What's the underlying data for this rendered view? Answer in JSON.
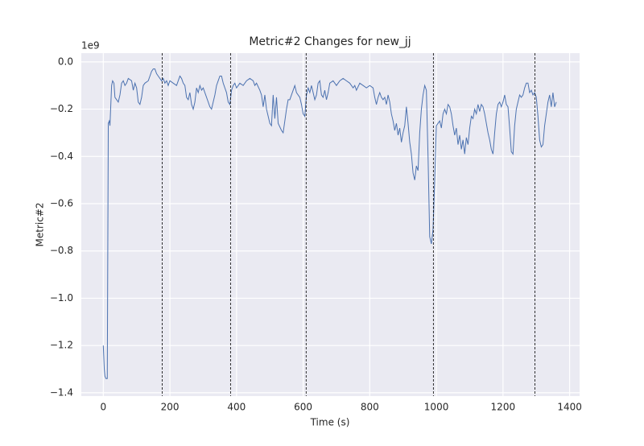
{
  "chart_data": {
    "type": "line",
    "title": "Metric#2 Changes for new_jj",
    "x_label": "Time (s)",
    "y_label": "Metric#2",
    "y_offset_label": "1e9",
    "x": [
      0,
      3,
      5,
      8,
      12,
      15,
      18,
      20,
      25,
      28,
      32,
      35,
      40,
      45,
      50,
      55,
      60,
      65,
      70,
      75,
      85,
      90,
      95,
      100,
      105,
      110,
      115,
      120,
      125,
      135,
      140,
      145,
      150,
      155,
      160,
      165,
      170,
      175,
      180,
      185,
      190,
      195,
      200,
      210,
      220,
      225,
      230,
      235,
      240,
      245,
      250,
      255,
      260,
      265,
      270,
      275,
      280,
      285,
      290,
      295,
      300,
      305,
      315,
      320,
      325,
      330,
      335,
      340,
      345,
      350,
      355,
      360,
      370,
      375,
      380,
      385,
      390,
      395,
      400,
      410,
      420,
      430,
      440,
      450,
      455,
      460,
      470,
      475,
      480,
      485,
      490,
      495,
      500,
      505,
      510,
      515,
      520,
      525,
      535,
      540,
      545,
      550,
      555,
      560,
      565,
      570,
      575,
      580,
      590,
      595,
      600,
      605,
      610,
      615,
      620,
      625,
      630,
      635,
      640,
      645,
      650,
      655,
      660,
      665,
      670,
      675,
      680,
      690,
      700,
      710,
      720,
      730,
      740,
      750,
      755,
      760,
      770,
      780,
      790,
      800,
      810,
      815,
      820,
      825,
      830,
      835,
      840,
      845,
      850,
      855,
      860,
      865,
      870,
      875,
      880,
      885,
      890,
      895,
      900,
      905,
      910,
      915,
      920,
      925,
      930,
      935,
      940,
      945,
      950,
      955,
      960,
      965,
      970,
      975,
      980,
      985,
      990,
      995,
      1000,
      1005,
      1010,
      1015,
      1020,
      1025,
      1030,
      1035,
      1040,
      1045,
      1050,
      1055,
      1060,
      1065,
      1070,
      1075,
      1080,
      1085,
      1090,
      1095,
      1100,
      1105,
      1110,
      1115,
      1120,
      1125,
      1130,
      1135,
      1140,
      1145,
      1150,
      1155,
      1160,
      1165,
      1170,
      1175,
      1180,
      1185,
      1190,
      1195,
      1200,
      1205,
      1210,
      1215,
      1220,
      1225,
      1230,
      1235,
      1240,
      1245,
      1250,
      1255,
      1260,
      1265,
      1270,
      1275,
      1280,
      1285,
      1290,
      1295,
      1300,
      1305,
      1310,
      1315,
      1320,
      1325,
      1330,
      1335,
      1340,
      1345,
      1350,
      1355,
      1360
    ],
    "series": [
      {
        "color": "#4c72b0",
        "values": [
          -1.2,
          -1.3,
          -1.33,
          -1.34,
          -1.34,
          -0.26,
          -0.25,
          -0.27,
          -0.1,
          -0.08,
          -0.09,
          -0.15,
          -0.16,
          -0.17,
          -0.14,
          -0.09,
          -0.08,
          -0.1,
          -0.09,
          -0.07,
          -0.08,
          -0.12,
          -0.09,
          -0.11,
          -0.17,
          -0.18,
          -0.15,
          -0.1,
          -0.09,
          -0.08,
          -0.06,
          -0.04,
          -0.03,
          -0.03,
          -0.05,
          -0.06,
          -0.07,
          -0.08,
          -0.07,
          -0.09,
          -0.08,
          -0.1,
          -0.08,
          -0.09,
          -0.1,
          -0.08,
          -0.06,
          -0.07,
          -0.09,
          -0.1,
          -0.15,
          -0.16,
          -0.13,
          -0.18,
          -0.2,
          -0.17,
          -0.11,
          -0.13,
          -0.1,
          -0.12,
          -0.11,
          -0.13,
          -0.17,
          -0.19,
          -0.2,
          -0.17,
          -0.14,
          -0.1,
          -0.08,
          -0.06,
          -0.06,
          -0.09,
          -0.13,
          -0.17,
          -0.18,
          -0.12,
          -0.1,
          -0.09,
          -0.11,
          -0.09,
          -0.1,
          -0.08,
          -0.07,
          -0.08,
          -0.1,
          -0.09,
          -0.12,
          -0.14,
          -0.19,
          -0.14,
          -0.2,
          -0.23,
          -0.26,
          -0.27,
          -0.14,
          -0.24,
          -0.15,
          -0.26,
          -0.29,
          -0.3,
          -0.25,
          -0.2,
          -0.16,
          -0.16,
          -0.14,
          -0.12,
          -0.1,
          -0.13,
          -0.15,
          -0.18,
          -0.22,
          -0.23,
          -0.14,
          -0.11,
          -0.13,
          -0.1,
          -0.13,
          -0.16,
          -0.14,
          -0.09,
          -0.08,
          -0.14,
          -0.15,
          -0.12,
          -0.16,
          -0.13,
          -0.09,
          -0.08,
          -0.1,
          -0.08,
          -0.07,
          -0.08,
          -0.09,
          -0.11,
          -0.1,
          -0.12,
          -0.09,
          -0.1,
          -0.11,
          -0.1,
          -0.11,
          -0.15,
          -0.18,
          -0.15,
          -0.13,
          -0.15,
          -0.16,
          -0.15,
          -0.18,
          -0.14,
          -0.17,
          -0.22,
          -0.25,
          -0.29,
          -0.26,
          -0.31,
          -0.28,
          -0.34,
          -0.3,
          -0.27,
          -0.19,
          -0.26,
          -0.34,
          -0.39,
          -0.47,
          -0.5,
          -0.44,
          -0.46,
          -0.3,
          -0.2,
          -0.14,
          -0.1,
          -0.12,
          -0.4,
          -0.74,
          -0.77,
          -0.71,
          -0.5,
          -0.27,
          -0.26,
          -0.25,
          -0.28,
          -0.22,
          -0.2,
          -0.22,
          -0.18,
          -0.19,
          -0.22,
          -0.27,
          -0.31,
          -0.28,
          -0.35,
          -0.31,
          -0.37,
          -0.33,
          -0.39,
          -0.32,
          -0.35,
          -0.28,
          -0.23,
          -0.24,
          -0.2,
          -0.22,
          -0.18,
          -0.21,
          -0.18,
          -0.19,
          -0.22,
          -0.26,
          -0.3,
          -0.33,
          -0.37,
          -0.39,
          -0.3,
          -0.22,
          -0.18,
          -0.17,
          -0.19,
          -0.17,
          -0.14,
          -0.18,
          -0.19,
          -0.28,
          -0.38,
          -0.39,
          -0.27,
          -0.2,
          -0.17,
          -0.14,
          -0.15,
          -0.14,
          -0.11,
          -0.09,
          -0.09,
          -0.13,
          -0.12,
          -0.14,
          -0.13,
          -0.15,
          -0.23,
          -0.33,
          -0.36,
          -0.35,
          -0.27,
          -0.22,
          -0.17,
          -0.14,
          -0.19,
          -0.13,
          -0.19,
          -0.17
        ]
      }
    ],
    "vlines": [
      177,
      382,
      609,
      991,
      1296
    ],
    "vline_color": "#000000",
    "xlim": [
      -66,
      1430
    ],
    "ylim": [
      -1.414,
      0.037
    ],
    "xticks": [
      0,
      200,
      400,
      600,
      800,
      1000,
      1200,
      1400
    ],
    "yticks": [
      {
        "value": 0,
        "label": "0.0"
      },
      {
        "value": -0.2,
        "label": "−0.2"
      },
      {
        "value": -0.4,
        "label": "−0.4"
      },
      {
        "value": -0.6,
        "label": "−0.6"
      },
      {
        "value": -0.8,
        "label": "−0.8"
      },
      {
        "value": -1.0,
        "label": "−1.0"
      },
      {
        "value": -1.2,
        "label": "−1.2"
      },
      {
        "value": -1.4,
        "label": "−1.4"
      }
    ],
    "grid": true
  }
}
